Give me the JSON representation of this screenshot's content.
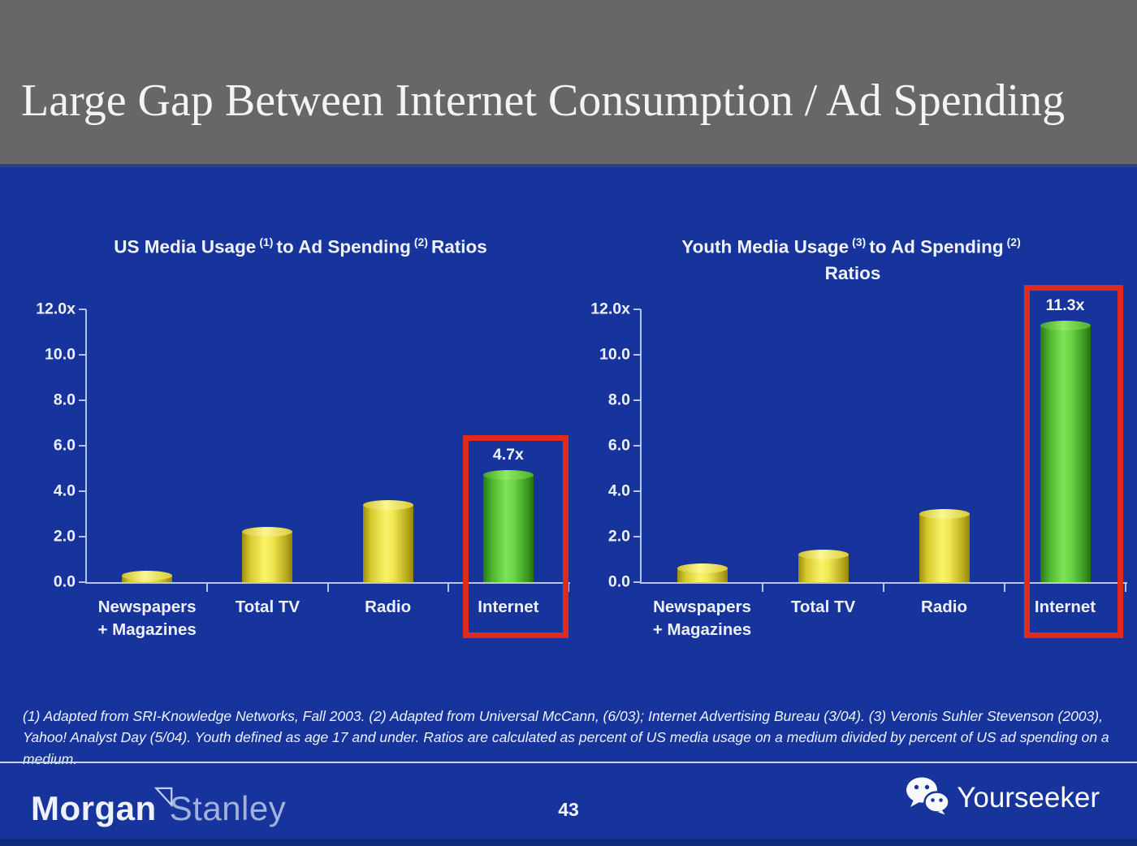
{
  "slide": {
    "title": "Large Gap Between Internet Consumption / Ad Spending",
    "page_number": "43",
    "footnote": "(1) Adapted from SRI-Knowledge Networks, Fall 2003.  (2) Adapted from Universal McCann, (6/03); Internet Advertising Bureau (3/04). (3) Veronis Suhler Stevenson (2003), Yahoo! Analyst Day (5/04).  Youth defined as age 17 and under.  Ratios are calculated as percent of US media usage on a medium divided by percent of US ad spending on a medium.",
    "brand": {
      "morgan": "Morgan",
      "stanley": "Stanley"
    },
    "watermark": {
      "label": "Yourseeker",
      "icon": "wechat-icon"
    }
  },
  "colors": {
    "background": "#16349b",
    "header_gray": "#67676a",
    "bar_yellow": "#e8e02f",
    "bar_green": "#63d23a",
    "highlight_red": "#e02a1e",
    "axis": "#b7c4ee",
    "text": "#f0f3fc"
  },
  "chart_data": [
    {
      "type": "bar",
      "title": "US Media Usage (1) to Ad Spending (2) Ratios",
      "title_parts": {
        "p1": "US Media Usage",
        "s1": "(1)",
        "p2": "to Ad Spending",
        "s2": "(2)",
        "p3": "Ratios"
      },
      "categories": [
        "Newspapers\n+ Magazines",
        "Total TV",
        "Radio",
        "Internet"
      ],
      "values": [
        0.3,
        2.2,
        3.4,
        4.7
      ],
      "highlight_index": 3,
      "highlight_value_label": "4.7x",
      "ytick_labels": [
        "12.0x",
        "10.0",
        "8.0",
        "6.0",
        "4.0",
        "2.0",
        "0.0"
      ],
      "ytick_values": [
        12,
        10,
        8,
        6,
        4,
        2,
        0
      ],
      "ylim": [
        0,
        12
      ],
      "xlabel": "",
      "ylabel": "",
      "grid": false,
      "legend": false
    },
    {
      "type": "bar",
      "title": "Youth Media Usage (3) to Ad Spending (2) Ratios",
      "title_parts": {
        "p1": "Youth Media Usage",
        "s1": "(3)",
        "p2": "to Ad Spending",
        "s2": "(2)",
        "line2": "Ratios"
      },
      "categories": [
        "Newspapers\n+ Magazines",
        "Total TV",
        "Radio",
        "Internet"
      ],
      "values": [
        0.6,
        1.2,
        3.0,
        11.3
      ],
      "highlight_index": 3,
      "highlight_value_label": "11.3x",
      "ytick_labels": [
        "12.0x",
        "10.0",
        "8.0",
        "6.0",
        "4.0",
        "2.0",
        "0.0"
      ],
      "ytick_values": [
        12,
        10,
        8,
        6,
        4,
        2,
        0
      ],
      "ylim": [
        0,
        12
      ],
      "xlabel": "",
      "ylabel": "",
      "grid": false,
      "legend": false
    }
  ]
}
